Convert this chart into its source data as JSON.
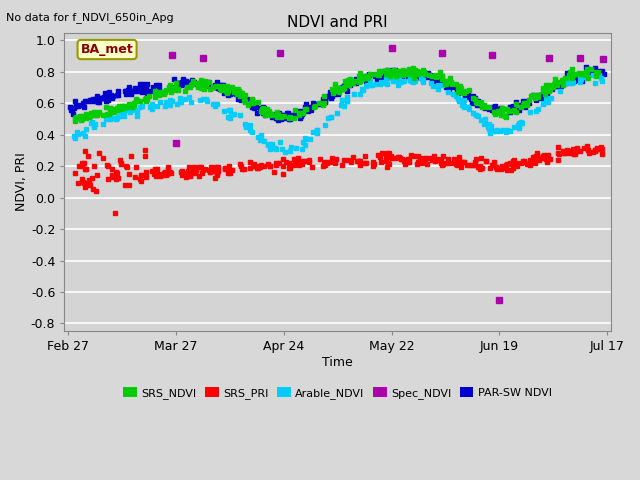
{
  "title": "NDVI and PRI",
  "subtitle": "No data for f_NDVI_650in_Apg",
  "ylabel": "NDVI, PRI",
  "xlabel": "Time",
  "box_label": "BA_met",
  "ylim": [
    -0.85,
    1.05
  ],
  "yticks": [
    -0.8,
    -0.6,
    -0.4,
    -0.2,
    0.0,
    0.2,
    0.4,
    0.6,
    0.8,
    1.0
  ],
  "xtick_labels": [
    "Feb 27",
    "Mar 27",
    "Apr 24",
    "May 22",
    "Jun 19",
    "Jul 17"
  ],
  "xtick_days": [
    0,
    28,
    56,
    84,
    112,
    140
  ],
  "total_days": 140,
  "series_colors": {
    "SRS_NDVI": "#00cc00",
    "SRS_PRI": "#ff0000",
    "Arable_NDVI": "#00ccff",
    "Spec_NDVI": "#aa00aa",
    "PAR_SW_NDVI": "#0000cc"
  },
  "legend_entries": [
    "SRS_NDVI",
    "SRS_PRI",
    "Arable_NDVI",
    "Spec_NDVI",
    "PAR-SW NDVI"
  ],
  "legend_colors": [
    "#00cc00",
    "#ff0000",
    "#00ccff",
    "#aa00aa",
    "#0000cc"
  ],
  "background_color": "#d8d8d8",
  "plot_bg_color": "#d4d4d4",
  "grid_color": "#ffffff"
}
